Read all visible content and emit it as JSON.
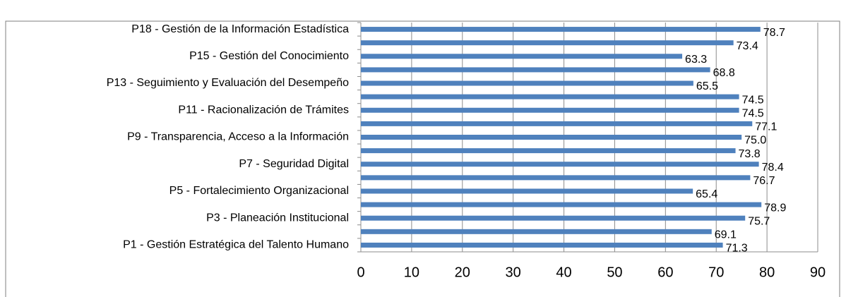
{
  "chart_data": {
    "type": "bar",
    "orientation": "horizontal",
    "categories": [
      "P1 -  Gestión Estratégica del Talento Humano",
      null,
      "P3 - Planeación Institucional",
      null,
      "P5 - Fortalecimiento Organizacional",
      null,
      "P7 - Seguridad Digital",
      null,
      "P9 - Transparencia, Acceso a la Información",
      null,
      "P11 -  Racionalización de Trámites",
      null,
      "P13 -  Seguimiento y Evaluación del Desempeño",
      null,
      "P15 - Gestión del Conocimiento",
      null,
      "P18 - Gestión de la Información Estadística"
    ],
    "values": [
      71.3,
      69.1,
      75.7,
      78.9,
      65.4,
      76.7,
      78.4,
      73.8,
      75.0,
      77.1,
      74.5,
      74.5,
      65.5,
      68.8,
      63.3,
      73.4,
      78.7
    ],
    "value_labels": [
      "71.3",
      "69.1",
      "75.7",
      "78.9",
      "65.4",
      "76.7",
      "78.4",
      "73.8",
      "75.0",
      "77.1",
      "74.5",
      "74.5",
      "65.5",
      "68.8",
      "63.3",
      "73.4",
      "78.7"
    ],
    "color": "#4f81bd",
    "xlim": [
      0,
      90
    ],
    "xticks": [
      0,
      10,
      20,
      30,
      40,
      50,
      60,
      70,
      80,
      90
    ],
    "grid": true
  }
}
